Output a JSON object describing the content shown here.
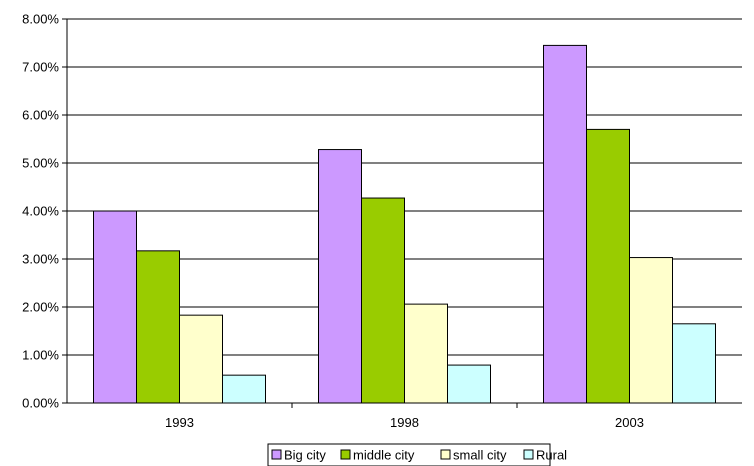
{
  "chart_data": {
    "type": "bar",
    "categories": [
      "1993",
      "1998",
      "2003"
    ],
    "series": [
      {
        "name": "Big city",
        "values": [
          4.0,
          5.28,
          7.45
        ],
        "color": "#cc99ff"
      },
      {
        "name": "middle city",
        "values": [
          3.17,
          4.27,
          5.7
        ],
        "color": "#99cc00"
      },
      {
        "name": "small city",
        "values": [
          1.83,
          2.06,
          3.03
        ],
        "color": "#ffffcc"
      },
      {
        "name": "Rural",
        "values": [
          0.58,
          0.79,
          1.65
        ],
        "color": "#ccffff"
      }
    ],
    "y_ticks": [
      "0.00%",
      "1.00%",
      "2.00%",
      "3.00%",
      "4.00%",
      "5.00%",
      "6.00%",
      "7.00%",
      "8.00%"
    ],
    "ylim": [
      0,
      8
    ],
    "y_unit": "percent",
    "grid": "horizontal",
    "legend_position": "bottom",
    "title": "",
    "xlabel": "",
    "ylabel": ""
  }
}
